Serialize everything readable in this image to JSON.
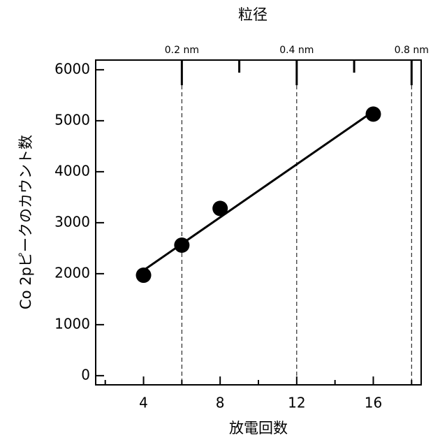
{
  "chart_data": {
    "type": "scatter",
    "xlabel": "放電回数",
    "ylabel": "Co 2pピークのカウント数",
    "x2label": "粒径",
    "x": [
      4,
      6,
      8,
      16
    ],
    "values": [
      1970,
      2560,
      3280,
      5130
    ],
    "color": "#000000",
    "fit": {
      "x": [
        4,
        16
      ],
      "values": [
        2066,
        5184
      ]
    },
    "xlim": [
      1.5,
      18.5
    ],
    "xticks": [
      4,
      8,
      12,
      16
    ],
    "xminor": [
      2,
      6,
      10,
      14,
      18
    ],
    "ylim": [
      -180,
      6190
    ],
    "yticks": [
      0,
      1000,
      2000,
      3000,
      4000,
      5000,
      6000
    ],
    "x2ticks": [
      {
        "value": 6,
        "label": "0.2 nm"
      },
      {
        "value": 12,
        "label": "0.4 nm"
      },
      {
        "value": 18,
        "label": "0.8 nm"
      }
    ],
    "x2minor": [
      9,
      15
    ]
  }
}
